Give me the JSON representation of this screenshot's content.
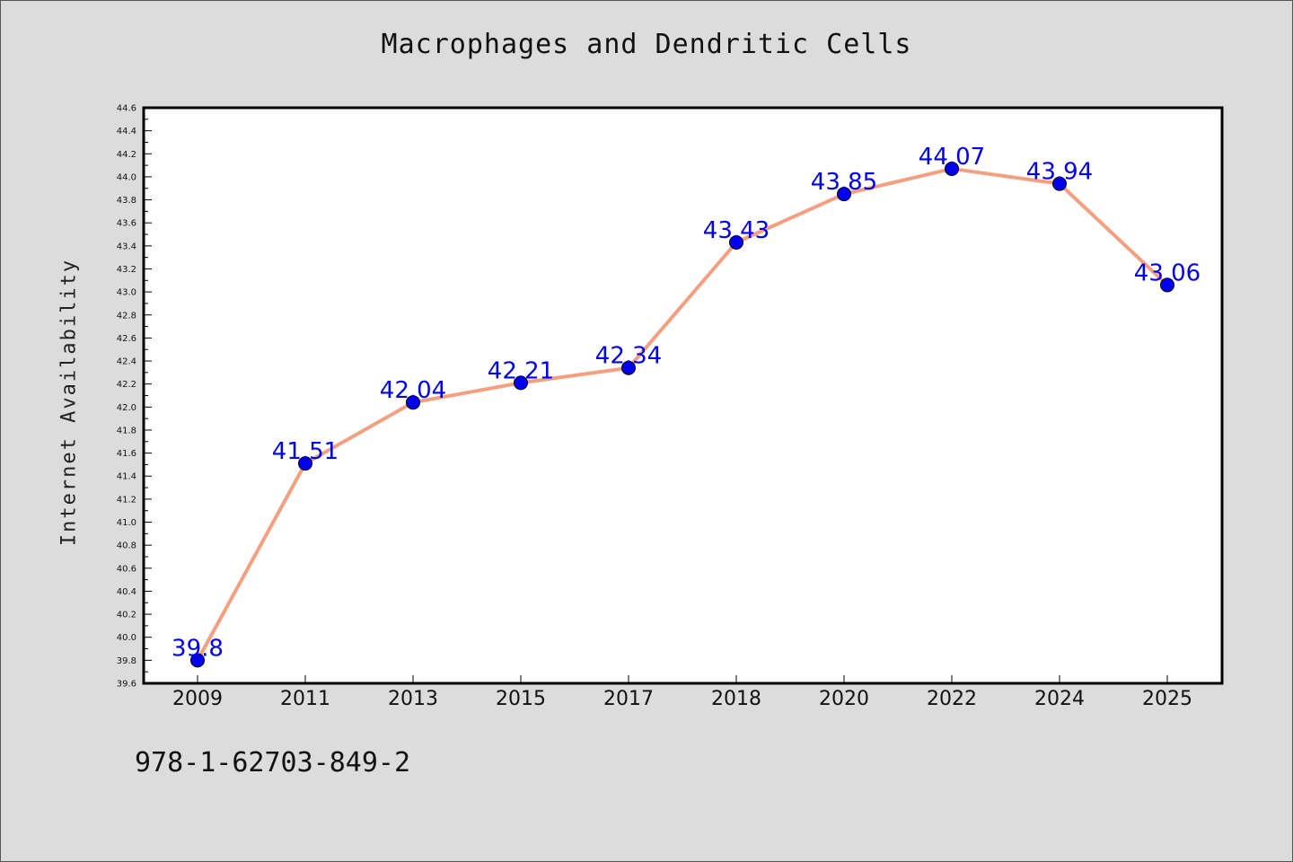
{
  "chart_data": {
    "type": "line",
    "title": "Macrophages and Dendritic Cells",
    "xlabel": "",
    "ylabel": "Internet Availability",
    "categories": [
      "2009",
      "2011",
      "2013",
      "2015",
      "2017",
      "2018",
      "2020",
      "2022",
      "2024",
      "2025"
    ],
    "series": [
      {
        "values": [
          39.8,
          41.51,
          42.04,
          42.21,
          42.34,
          43.43,
          43.85,
          44.07,
          43.94,
          43.06
        ],
        "data_labels": [
          "39.8",
          "41.51",
          "42.04",
          "42.21",
          "42.34",
          "43.43",
          "43.85",
          "44.07",
          "43.94",
          "43.06"
        ],
        "line_color": "#f4a080",
        "marker_color": "#0000ee"
      }
    ],
    "ylim": [
      39.6,
      44.6
    ],
    "yticks": [
      "39.6",
      "39.8",
      "40.0",
      "40.2",
      "40.4",
      "40.6",
      "40.8",
      "41.0",
      "41.2",
      "41.4",
      "41.6",
      "41.8",
      "42.0",
      "42.2",
      "42.4",
      "42.6",
      "42.8",
      "43.0",
      "43.2",
      "43.4",
      "43.6",
      "43.8",
      "44.0",
      "44.2",
      "44.4",
      "44.6"
    ],
    "grid": false,
    "legend": "none",
    "label_color": "#0000ee"
  },
  "footer": {
    "isbn": "978-1-62703-849-2"
  }
}
